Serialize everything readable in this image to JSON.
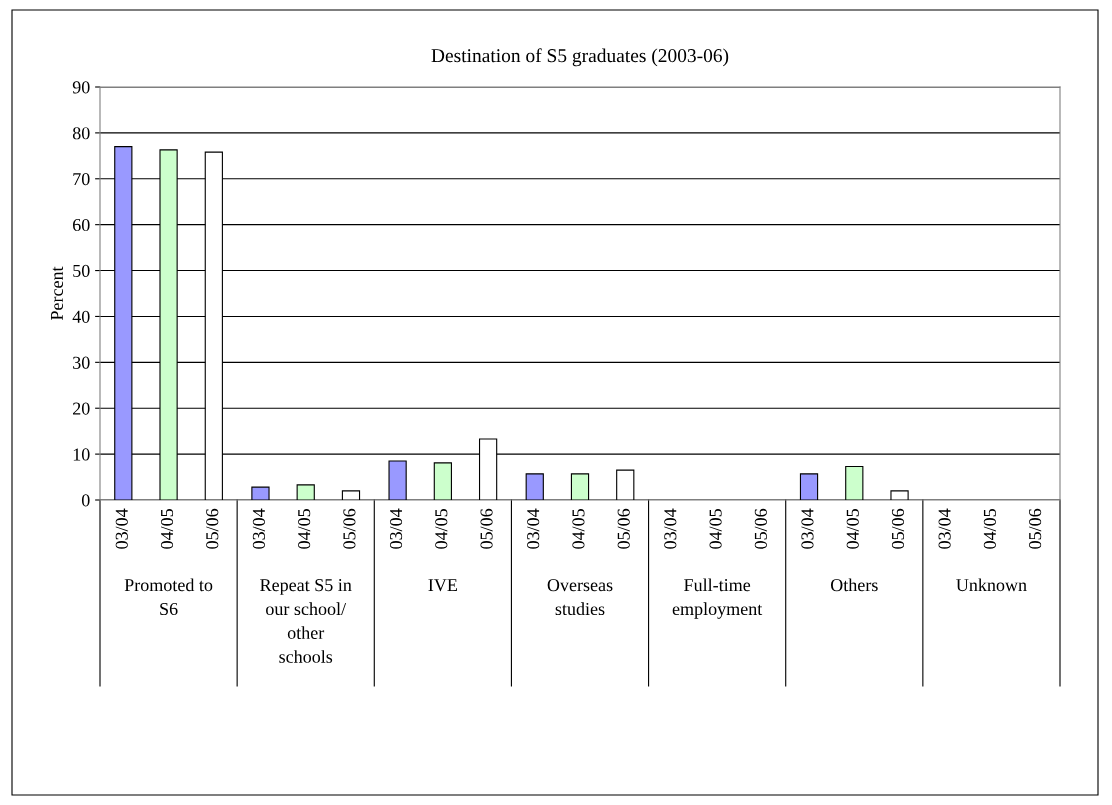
{
  "chart_data": {
    "type": "bar",
    "title": "Destination of S5 graduates (2003-06)",
    "ylabel": "Percent",
    "categories": [
      "Promoted to\nS6",
      "Repeat S5 in\nour school/\nother\nschools",
      "IVE",
      "Overseas\nstudies",
      "Full-time\nemployment",
      "Others",
      "Unknown"
    ],
    "series": [
      {
        "name": "03/04",
        "color": "#9999ff",
        "values": [
          77,
          2.8,
          8.5,
          5.7,
          0,
          5.7,
          0
        ]
      },
      {
        "name": "04/05",
        "color": "#ccffcc",
        "values": [
          76.3,
          3.3,
          8.1,
          5.7,
          0,
          7.3,
          0
        ]
      },
      {
        "name": "05/06",
        "color": "#ffffff",
        "values": [
          75.8,
          2.0,
          13.3,
          6.5,
          0,
          2.0,
          0
        ]
      }
    ],
    "ylim": [
      0,
      90
    ],
    "yticks": [
      0,
      10,
      20,
      30,
      40,
      50,
      60,
      70,
      80,
      90
    ],
    "grid": "y",
    "legend": false
  }
}
